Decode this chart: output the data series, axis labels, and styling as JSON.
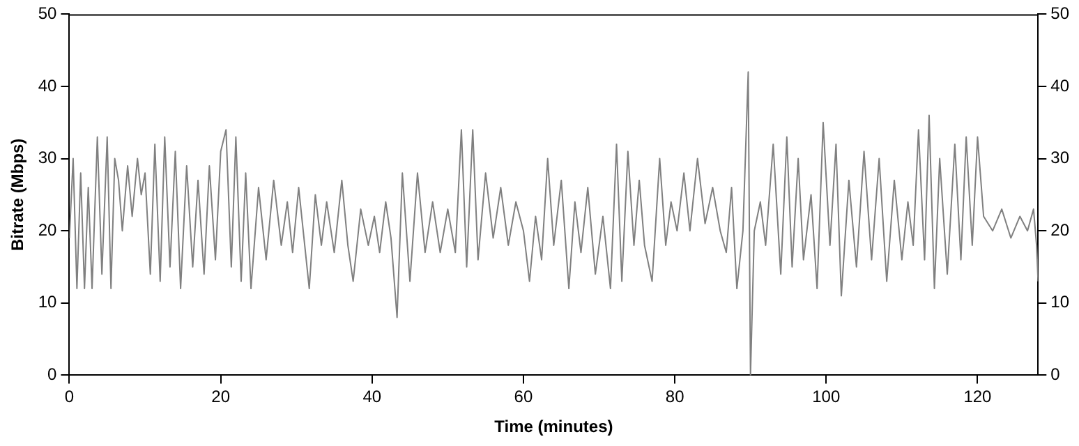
{
  "chart_data": {
    "type": "line",
    "xlabel": "Time (minutes)",
    "ylabel": "Bitrate (Mbps)",
    "xlim": [
      0,
      128
    ],
    "xticks": [
      0,
      20,
      40,
      60,
      80,
      100,
      120
    ],
    "ylim": [
      0,
      50
    ],
    "yticks": [
      0,
      10,
      20,
      30,
      40,
      50
    ],
    "y2lim": [
      0,
      50
    ],
    "y2ticks": [
      0,
      10,
      20,
      30,
      40,
      50
    ],
    "grid": false,
    "legend": false,
    "marker": "none",
    "line_style": "solid",
    "x": [
      0,
      0.5,
      1,
      1.5,
      2,
      2.5,
      3,
      3.7,
      4.3,
      5,
      5.5,
      6,
      6.5,
      7,
      7.7,
      8.3,
      9,
      9.5,
      10,
      10.7,
      11.3,
      12,
      12.6,
      13.3,
      14,
      14.7,
      15.5,
      16.3,
      17,
      17.8,
      18.5,
      19.3,
      20,
      20.7,
      21.4,
      22,
      22.7,
      23.3,
      24,
      25,
      26,
      27,
      28,
      28.8,
      29.5,
      30.3,
      31,
      31.7,
      32.5,
      33.3,
      34,
      35,
      36,
      36.8,
      37.5,
      38.5,
      39.5,
      40.3,
      41,
      41.8,
      42.5,
      43.3,
      44,
      45,
      46,
      47,
      48,
      49,
      50,
      51,
      51.8,
      52.5,
      53.3,
      54,
      55,
      56,
      57,
      58,
      59,
      60,
      60.8,
      61.6,
      62.4,
      63.2,
      64,
      65,
      66,
      66.8,
      67.6,
      68.5,
      69.5,
      70.5,
      71.5,
      72.3,
      73,
      73.8,
      74.6,
      75.3,
      76,
      77,
      78,
      78.8,
      79.5,
      80.3,
      81.2,
      82,
      83,
      84,
      85,
      86,
      86.8,
      87.5,
      88.2,
      89,
      89.7,
      90,
      90.5,
      91.3,
      92,
      93,
      94,
      94.8,
      95.5,
      96.3,
      97,
      98,
      98.8,
      99.6,
      100.5,
      101.3,
      102,
      103,
      104,
      105,
      106,
      107,
      108,
      109,
      110,
      110.8,
      111.5,
      112.2,
      113,
      113.6,
      114.3,
      115,
      116,
      117,
      117.8,
      118.5,
      119.3,
      120,
      120.8,
      122,
      123.2,
      124.4,
      125.6,
      126.6,
      127.4,
      127.8,
      128
    ],
    "series": [
      {
        "color": "#808080",
        "values": [
          19,
          30,
          12,
          28,
          12,
          26,
          12,
          33,
          14,
          33,
          12,
          30,
          27,
          20,
          29,
          22,
          30,
          25,
          28,
          14,
          32,
          13,
          33,
          15,
          31,
          12,
          29,
          15,
          27,
          14,
          29,
          16,
          31,
          34,
          15,
          33,
          13,
          28,
          12,
          26,
          16,
          27,
          18,
          24,
          17,
          26,
          19,
          12,
          25,
          18,
          24,
          17,
          27,
          18,
          13,
          23,
          18,
          22,
          17,
          24,
          19,
          8,
          28,
          13,
          28,
          17,
          24,
          17,
          23,
          17,
          34,
          15,
          34,
          16,
          28,
          19,
          26,
          18,
          24,
          20,
          13,
          22,
          16,
          30,
          18,
          27,
          12,
          24,
          17,
          26,
          14,
          22,
          12,
          32,
          13,
          31,
          18,
          27,
          18,
          13,
          30,
          18,
          24,
          20,
          28,
          20,
          30,
          21,
          26,
          20,
          17,
          26,
          12,
          20,
          42,
          0,
          20,
          24,
          18,
          32,
          14,
          33,
          15,
          30,
          16,
          25,
          12,
          35,
          18,
          32,
          11,
          27,
          15,
          31,
          16,
          30,
          13,
          27,
          16,
          24,
          18,
          34,
          16,
          36,
          12,
          30,
          14,
          32,
          16,
          33,
          18,
          33,
          22,
          20,
          23,
          19,
          22,
          20,
          23,
          18,
          13
        ]
      }
    ]
  }
}
